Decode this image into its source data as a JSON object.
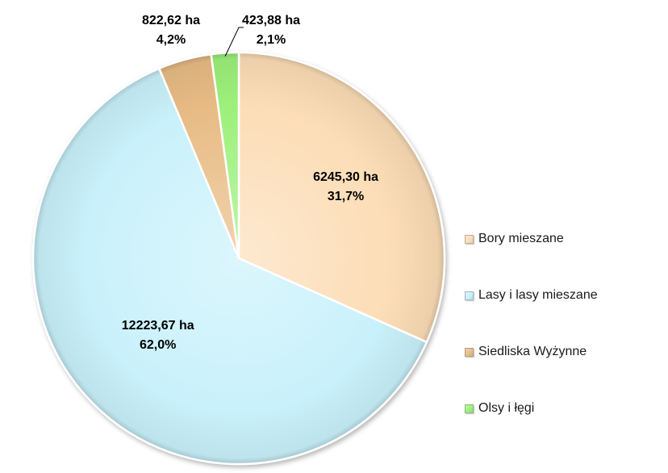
{
  "chart_data": {
    "type": "pie",
    "categories": [
      "Bory mieszane",
      "Lasy i lasy mieszane",
      "Siedliska Wyżynne",
      "Olsy i łęgi"
    ],
    "values": [
      6245.3,
      12223.67,
      822.62,
      423.88
    ],
    "percentages": [
      31.7,
      62.0,
      4.2,
      2.1
    ],
    "value_labels": [
      "6245,30 ha",
      "12223,67 ha",
      "822,62 ha",
      "423,88 ha"
    ],
    "percent_labels": [
      "31,7%",
      "62,0%",
      "4,2%",
      "2,1%"
    ],
    "colors": [
      "#FCDDB6",
      "#C9F1FB",
      "#E8BB84",
      "#9CF07A"
    ],
    "legend_position": "right",
    "start_angle_deg": 0,
    "direction": "clockwise"
  }
}
